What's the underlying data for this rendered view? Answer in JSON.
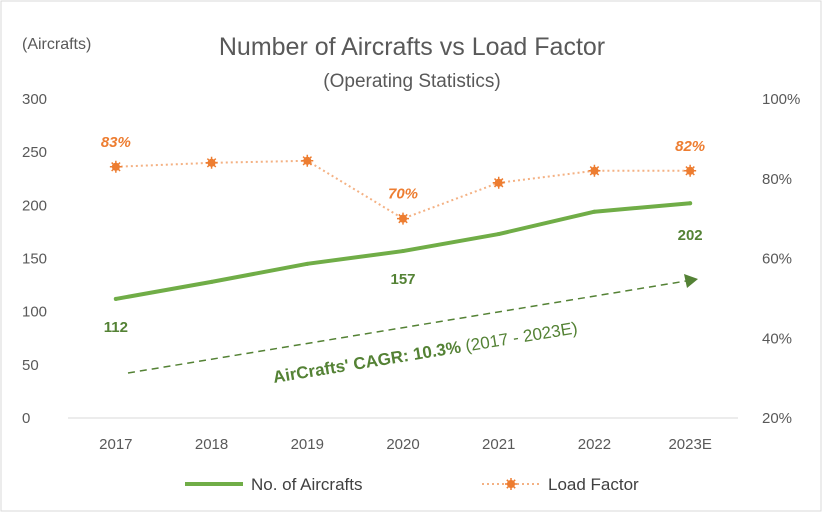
{
  "chart_data": {
    "type": "line",
    "title": "Number of Aircrafts vs Load Factor",
    "subtitle": "(Operating Statistics)",
    "y_unit_label": "(Aircrafts)",
    "categories": [
      "2017",
      "2018",
      "2019",
      "2020",
      "2021",
      "2022",
      "2023E"
    ],
    "ylim": [
      0,
      300
    ],
    "yticks": [
      "0",
      "50",
      "100",
      "150",
      "200",
      "250",
      "300"
    ],
    "y2lim": [
      20,
      100
    ],
    "y2ticks": [
      "20%",
      "40%",
      "60%",
      "80%",
      "100%"
    ],
    "grid": false,
    "legend_position": "bottom",
    "series": [
      {
        "name": "No. of Aircrafts",
        "axis": "left",
        "color": "#70AD47",
        "style": "solid",
        "values": [
          112,
          128,
          145,
          157,
          173,
          194,
          202
        ],
        "data_labels": {
          "0": "112",
          "3": "157",
          "6": "202"
        }
      },
      {
        "name": "Load Factor",
        "axis": "right",
        "color": "#F4B183",
        "marker_color": "#ED7D31",
        "style": "dotted",
        "values": [
          83,
          84,
          84.5,
          70,
          79,
          82,
          82
        ],
        "data_labels": {
          "0": "83%",
          "3": "70%",
          "6": "82%"
        }
      }
    ],
    "annotation": {
      "bold_text": "AirCrafts' CAGR: 10.3%",
      "normal_text": " (2017 - 2023E)",
      "color": "#548235"
    }
  }
}
